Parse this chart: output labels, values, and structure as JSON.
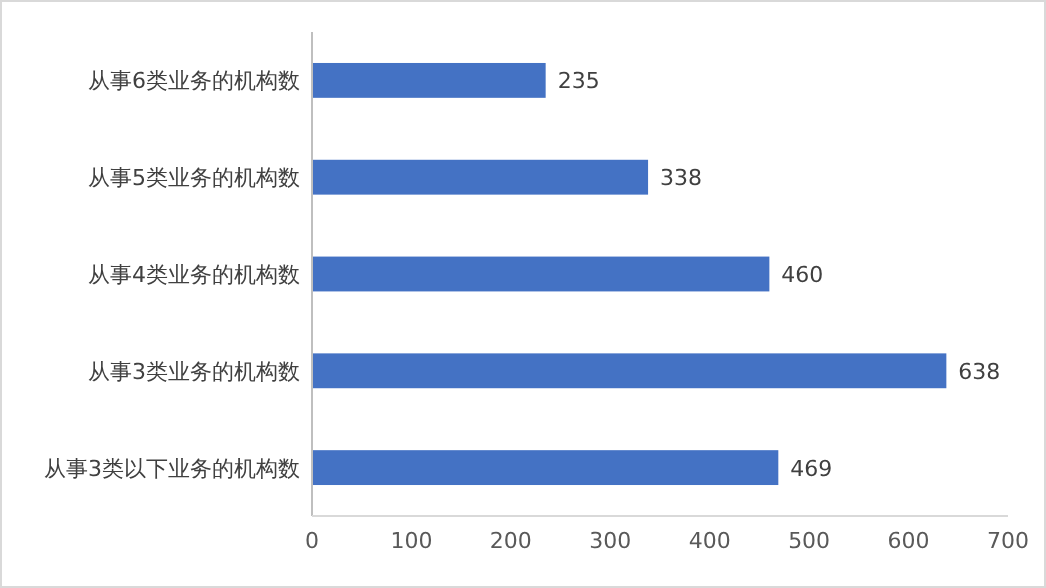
{
  "chart_data": {
    "type": "bar",
    "orientation": "horizontal",
    "categories": [
      "从事6类业务的机构数",
      "从事5类业务的机构数",
      "从事4类业务的机构数",
      "从事3类业务的机构数",
      "从事3类以下业务的机构数"
    ],
    "values": [
      235,
      338,
      460,
      638,
      469
    ],
    "color": "#4472c4",
    "xlim": [
      0,
      700
    ],
    "xticks": [
      0,
      100,
      200,
      300,
      400,
      500,
      600,
      700
    ],
    "data_labels": true,
    "grid": false
  }
}
